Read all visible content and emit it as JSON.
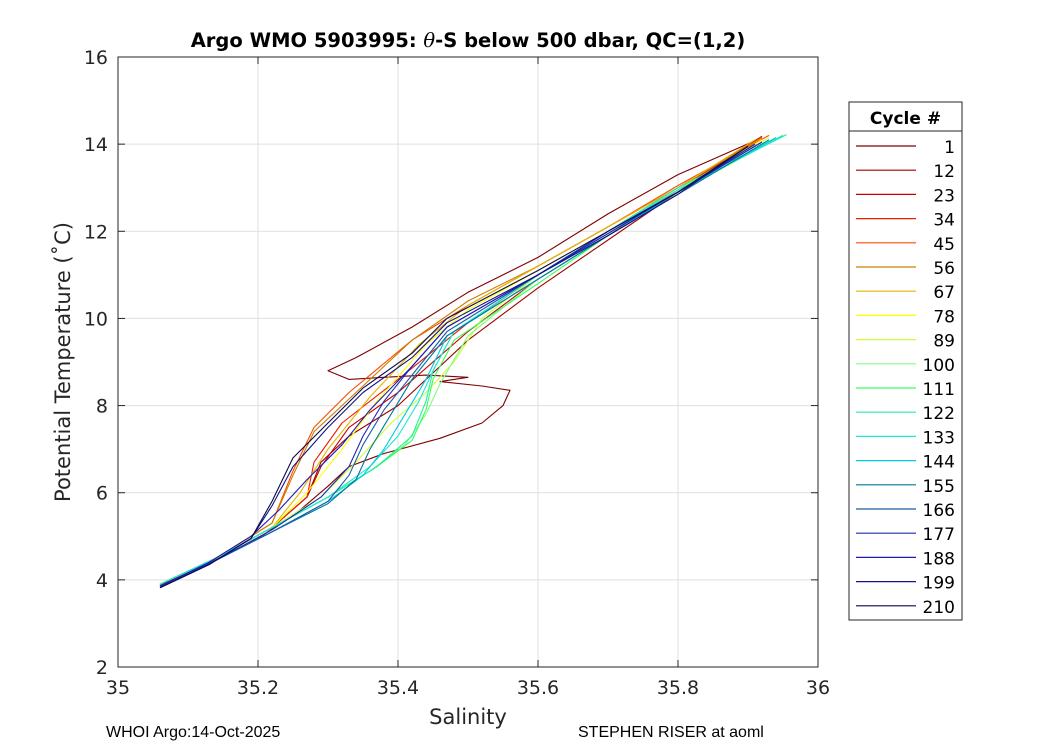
{
  "chart_data": {
    "type": "line",
    "title_parts": [
      "Argo WMO 5903995: ",
      "θ",
      "-S below 500 dbar,  QC=(1,2)"
    ],
    "xlabel": "Salinity",
    "ylabel": "Potential Temperature (˚C)",
    "xlim": [
      35,
      36
    ],
    "ylim": [
      2,
      16
    ],
    "xticks": [
      35,
      35.2,
      35.4,
      35.6,
      35.8,
      36
    ],
    "xtick_labels": [
      "35",
      "35.2",
      "35.4",
      "35.6",
      "35.8",
      "36"
    ],
    "yticks": [
      2,
      4,
      6,
      8,
      10,
      12,
      14,
      16
    ],
    "ytick_labels": [
      "2",
      "4",
      "6",
      "8",
      "10",
      "12",
      "14",
      "16"
    ],
    "grid": true,
    "legend": {
      "title": "Cycle #",
      "placement": "outside-right",
      "entries": [
        "1",
        "12",
        "23",
        "34",
        "45",
        "56",
        "67",
        "78",
        "89",
        "100",
        "111",
        "122",
        "133",
        "144",
        "155",
        "166",
        "177",
        "188",
        "199",
        "210"
      ],
      "colors": [
        "#7f0000",
        "#a30000",
        "#c80000",
        "#ea1c00",
        "#ff4a00",
        "#c88200",
        "#e6b400",
        "#ffff00",
        "#c8ff37",
        "#7dff7d",
        "#37ff5a",
        "#23f0a0",
        "#1ee6d2",
        "#00c8e6",
        "#00789b",
        "#1e5aa5",
        "#1e2ab4",
        "#1e1eb4",
        "#141482",
        "#0a0a50"
      ]
    },
    "series": [
      {
        "name": "1",
        "salinity": [
          35.06,
          35.12,
          35.2,
          35.26,
          35.3,
          35.33,
          35.38,
          35.46,
          35.52,
          35.55,
          35.56,
          35.52,
          35.46,
          35.5,
          35.44,
          35.38,
          35.33,
          35.3,
          35.34,
          35.42,
          35.5,
          35.6,
          35.7,
          35.8,
          35.92
        ],
        "temperature": [
          3.88,
          4.3,
          4.95,
          5.6,
          6.15,
          6.6,
          6.9,
          7.25,
          7.6,
          8.0,
          8.35,
          8.45,
          8.55,
          8.65,
          8.7,
          8.65,
          8.6,
          8.8,
          9.1,
          9.8,
          10.6,
          11.4,
          12.4,
          13.3,
          14.15
        ]
      },
      {
        "name": "12",
        "salinity": [
          35.06,
          35.14,
          35.22,
          35.27,
          35.29,
          35.33,
          35.4,
          35.5,
          35.6,
          35.7,
          35.8,
          35.92
        ],
        "temperature": [
          3.9,
          4.5,
          5.2,
          5.9,
          6.7,
          7.3,
          8.0,
          9.5,
          10.7,
          11.8,
          12.9,
          14.18
        ]
      },
      {
        "name": "23",
        "salinity": [
          35.06,
          35.14,
          35.22,
          35.27,
          35.29,
          35.33,
          35.4,
          35.5,
          35.6,
          35.7,
          35.8,
          35.92
        ],
        "temperature": [
          3.9,
          4.5,
          5.2,
          5.9,
          6.6,
          7.5,
          8.3,
          9.7,
          10.9,
          11.9,
          12.95,
          14.18
        ]
      },
      {
        "name": "34",
        "salinity": [
          35.06,
          35.14,
          35.22,
          35.27,
          35.28,
          35.32,
          35.4,
          35.5,
          35.6,
          35.7,
          35.8,
          35.92
        ],
        "temperature": [
          3.9,
          4.5,
          5.2,
          5.9,
          6.7,
          7.6,
          8.6,
          9.9,
          11.0,
          12.0,
          13.0,
          14.18
        ]
      },
      {
        "name": "45",
        "salinity": [
          35.06,
          35.14,
          35.22,
          35.25,
          35.28,
          35.33,
          35.42,
          35.5,
          35.6,
          35.7,
          35.8,
          35.93
        ],
        "temperature": [
          3.9,
          4.5,
          5.3,
          6.5,
          7.5,
          8.3,
          9.5,
          10.3,
          11.2,
          12.1,
          13.05,
          14.2
        ]
      },
      {
        "name": "56",
        "salinity": [
          35.06,
          35.14,
          35.22,
          35.25,
          35.28,
          35.34,
          35.42,
          35.5,
          35.6,
          35.7,
          35.8,
          35.92
        ],
        "temperature": [
          3.9,
          4.5,
          5.3,
          6.4,
          7.4,
          8.3,
          9.5,
          10.4,
          11.2,
          12.1,
          13.0,
          14.15
        ]
      },
      {
        "name": "67",
        "salinity": [
          35.06,
          35.14,
          35.22,
          35.26,
          35.3,
          35.36,
          35.43,
          35.5,
          35.6,
          35.7,
          35.8,
          35.91
        ],
        "temperature": [
          3.9,
          4.5,
          5.2,
          6.0,
          7.0,
          8.2,
          9.4,
          10.3,
          11.2,
          12.1,
          13.0,
          14.1
        ]
      },
      {
        "name": "78",
        "salinity": [
          35.06,
          35.14,
          35.22,
          35.27,
          35.32,
          35.37,
          35.44,
          35.5,
          35.6,
          35.7,
          35.8,
          35.92
        ],
        "temperature": [
          3.9,
          4.5,
          5.2,
          6.0,
          7.0,
          8.1,
          9.4,
          10.2,
          11.1,
          12.0,
          12.95,
          14.1
        ]
      },
      {
        "name": "89",
        "salinity": [
          35.06,
          35.14,
          35.22,
          35.29,
          35.34,
          35.39,
          35.44,
          35.48,
          35.52,
          35.6,
          35.7,
          35.8,
          35.93
        ],
        "temperature": [
          3.9,
          4.5,
          5.2,
          5.9,
          6.7,
          7.6,
          8.3,
          9.0,
          10.0,
          11.0,
          12.0,
          12.95,
          14.15
        ]
      },
      {
        "name": "100",
        "salinity": [
          35.06,
          35.14,
          35.22,
          35.3,
          35.36,
          35.41,
          35.44,
          35.46,
          35.5,
          35.6,
          35.7,
          35.8,
          35.94
        ],
        "temperature": [
          3.9,
          4.5,
          5.2,
          5.9,
          6.5,
          7.1,
          7.8,
          8.5,
          9.6,
          10.9,
          11.9,
          12.9,
          14.15
        ]
      },
      {
        "name": "111",
        "salinity": [
          35.06,
          35.14,
          35.22,
          35.3,
          35.37,
          35.42,
          35.44,
          35.45,
          35.48,
          35.6,
          35.7,
          35.8,
          35.95
        ],
        "temperature": [
          3.9,
          4.5,
          5.2,
          5.9,
          6.6,
          7.2,
          7.9,
          8.6,
          9.5,
          10.8,
          11.9,
          12.9,
          14.2
        ]
      },
      {
        "name": "122",
        "salinity": [
          35.06,
          35.14,
          35.22,
          35.3,
          35.37,
          35.42,
          35.44,
          35.45,
          35.48,
          35.6,
          35.7,
          35.8,
          35.95
        ],
        "temperature": [
          3.9,
          4.5,
          5.2,
          5.9,
          6.6,
          7.3,
          8.1,
          8.8,
          9.7,
          11.0,
          12.0,
          13.0,
          14.2
        ]
      },
      {
        "name": "133",
        "salinity": [
          35.06,
          35.14,
          35.22,
          35.3,
          35.36,
          35.4,
          35.43,
          35.45,
          35.48,
          35.6,
          35.7,
          35.8,
          35.955
        ],
        "temperature": [
          3.9,
          4.5,
          5.2,
          5.9,
          6.6,
          7.3,
          8.1,
          8.8,
          9.7,
          11.0,
          12.0,
          12.95,
          14.22
        ]
      },
      {
        "name": "144",
        "salinity": [
          35.06,
          35.14,
          35.22,
          35.3,
          35.35,
          35.38,
          35.41,
          35.44,
          35.47,
          35.6,
          35.7,
          35.8,
          35.94
        ],
        "temperature": [
          3.85,
          4.45,
          5.1,
          5.8,
          6.4,
          7.0,
          7.8,
          8.6,
          9.6,
          10.9,
          11.9,
          12.9,
          14.15
        ]
      },
      {
        "name": "155",
        "salinity": [
          35.06,
          35.14,
          35.22,
          35.3,
          35.34,
          35.36,
          35.39,
          35.42,
          35.47,
          35.6,
          35.7,
          35.8,
          35.93
        ],
        "temperature": [
          3.85,
          4.45,
          5.1,
          5.75,
          6.3,
          7.0,
          7.8,
          8.6,
          9.6,
          10.9,
          11.9,
          12.85,
          14.1
        ]
      },
      {
        "name": "166",
        "salinity": [
          35.06,
          35.14,
          35.22,
          35.3,
          35.33,
          35.35,
          35.38,
          35.42,
          35.47,
          35.6,
          35.7,
          35.8,
          35.92
        ],
        "temperature": [
          3.85,
          4.45,
          5.1,
          5.8,
          6.4,
          7.1,
          7.9,
          8.7,
          9.7,
          11.0,
          12.0,
          12.9,
          14.05
        ]
      },
      {
        "name": "177",
        "salinity": [
          35.06,
          35.14,
          35.22,
          35.29,
          35.33,
          35.35,
          35.38,
          35.42,
          35.47,
          35.6,
          35.7,
          35.8,
          35.92
        ],
        "temperature": [
          3.85,
          4.45,
          5.15,
          5.9,
          6.6,
          7.3,
          8.1,
          8.9,
          9.8,
          11.0,
          12.0,
          12.9,
          14.05
        ]
      },
      {
        "name": "188",
        "salinity": [
          35.06,
          35.13,
          35.19,
          35.23,
          35.27,
          35.32,
          35.36,
          35.42,
          35.47,
          35.6,
          35.7,
          35.8,
          35.91
        ],
        "temperature": [
          3.85,
          4.4,
          5.0,
          5.6,
          6.3,
          7.1,
          7.9,
          8.9,
          9.8,
          11.0,
          11.95,
          12.9,
          14.0
        ]
      },
      {
        "name": "199",
        "salinity": [
          35.06,
          35.13,
          35.19,
          35.22,
          35.25,
          35.3,
          35.35,
          35.42,
          35.47,
          35.6,
          35.7,
          35.8,
          35.9
        ],
        "temperature": [
          3.82,
          4.35,
          4.95,
          5.7,
          6.6,
          7.5,
          8.3,
          9.1,
          9.9,
          11.0,
          11.9,
          12.85,
          13.95
        ]
      },
      {
        "name": "210",
        "salinity": [
          35.06,
          35.13,
          35.19,
          35.22,
          35.25,
          35.3,
          35.35,
          35.42,
          35.47,
          35.6,
          35.7,
          35.8,
          35.9
        ],
        "temperature": [
          3.82,
          4.35,
          4.95,
          5.8,
          6.8,
          7.6,
          8.4,
          9.2,
          10.0,
          11.1,
          12.0,
          12.9,
          13.95
        ]
      }
    ]
  },
  "footer": {
    "left": "WHOI Argo:14-Oct-2025",
    "right": "STEPHEN RISER at aoml"
  }
}
